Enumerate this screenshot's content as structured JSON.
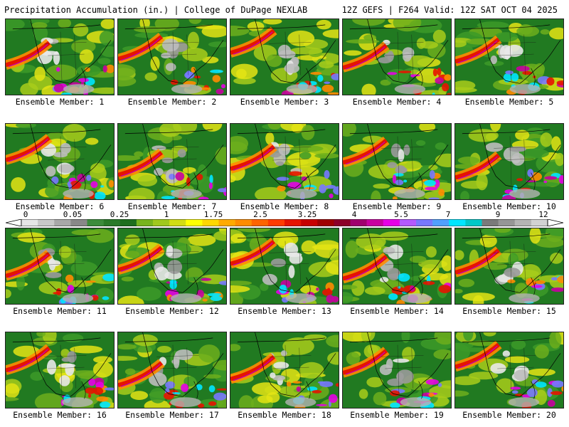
{
  "header": {
    "title": "Precipitation Accumulation (in.) | College of DuPage NEXLAB",
    "valid": "12Z GEFS | F264 Valid: 12Z SAT OCT 04 2025"
  },
  "panels": [
    {
      "label": "Ensemble Member: 1"
    },
    {
      "label": "Ensemble Member: 2"
    },
    {
      "label": "Ensemble Member: 3"
    },
    {
      "label": "Ensemble Member: 4"
    },
    {
      "label": "Ensemble Member: 5"
    },
    {
      "label": "Ensemble Member: 6"
    },
    {
      "label": "Ensemble Member: 7"
    },
    {
      "label": "Ensemble Member: 8"
    },
    {
      "label": "Ensemble Member: 9"
    },
    {
      "label": "Ensemble Member: 10"
    },
    {
      "label": "Ensemble Member: 11"
    },
    {
      "label": "Ensemble Member: 12"
    },
    {
      "label": "Ensemble Member: 13"
    },
    {
      "label": "Ensemble Member: 14"
    },
    {
      "label": "Ensemble Member: 15"
    },
    {
      "label": "Ensemble Member: 16"
    },
    {
      "label": "Ensemble Member: 17"
    },
    {
      "label": "Ensemble Member: 18"
    },
    {
      "label": "Ensemble Member: 19"
    },
    {
      "label": "Ensemble Member: 20"
    }
  ],
  "colorbar": {
    "labels": [
      "0",
      "0.05",
      "0.25",
      "1",
      "1.75",
      "2.5",
      "3.25",
      "4",
      "5.5",
      "7",
      "9",
      "12"
    ],
    "colors": [
      "#e6e6e6",
      "#c8c8c8",
      "#a8a8a8",
      "#888888",
      "#3c8c3c",
      "#2a7a2a",
      "#1e6e1e",
      "#78b41e",
      "#a0c81e",
      "#d2dc14",
      "#ffff00",
      "#ffd700",
      "#ffaa00",
      "#ff8c00",
      "#ff6400",
      "#ff3c00",
      "#e61400",
      "#c80000",
      "#a00000",
      "#8c0028",
      "#a0006e",
      "#c800a0",
      "#e600e6",
      "#b45aff",
      "#7878ff",
      "#50a0ff",
      "#00e6ff",
      "#00c8c8",
      "#7a7a7a",
      "#969696",
      "#b4b4b4",
      "#d2d2d2"
    ]
  }
}
